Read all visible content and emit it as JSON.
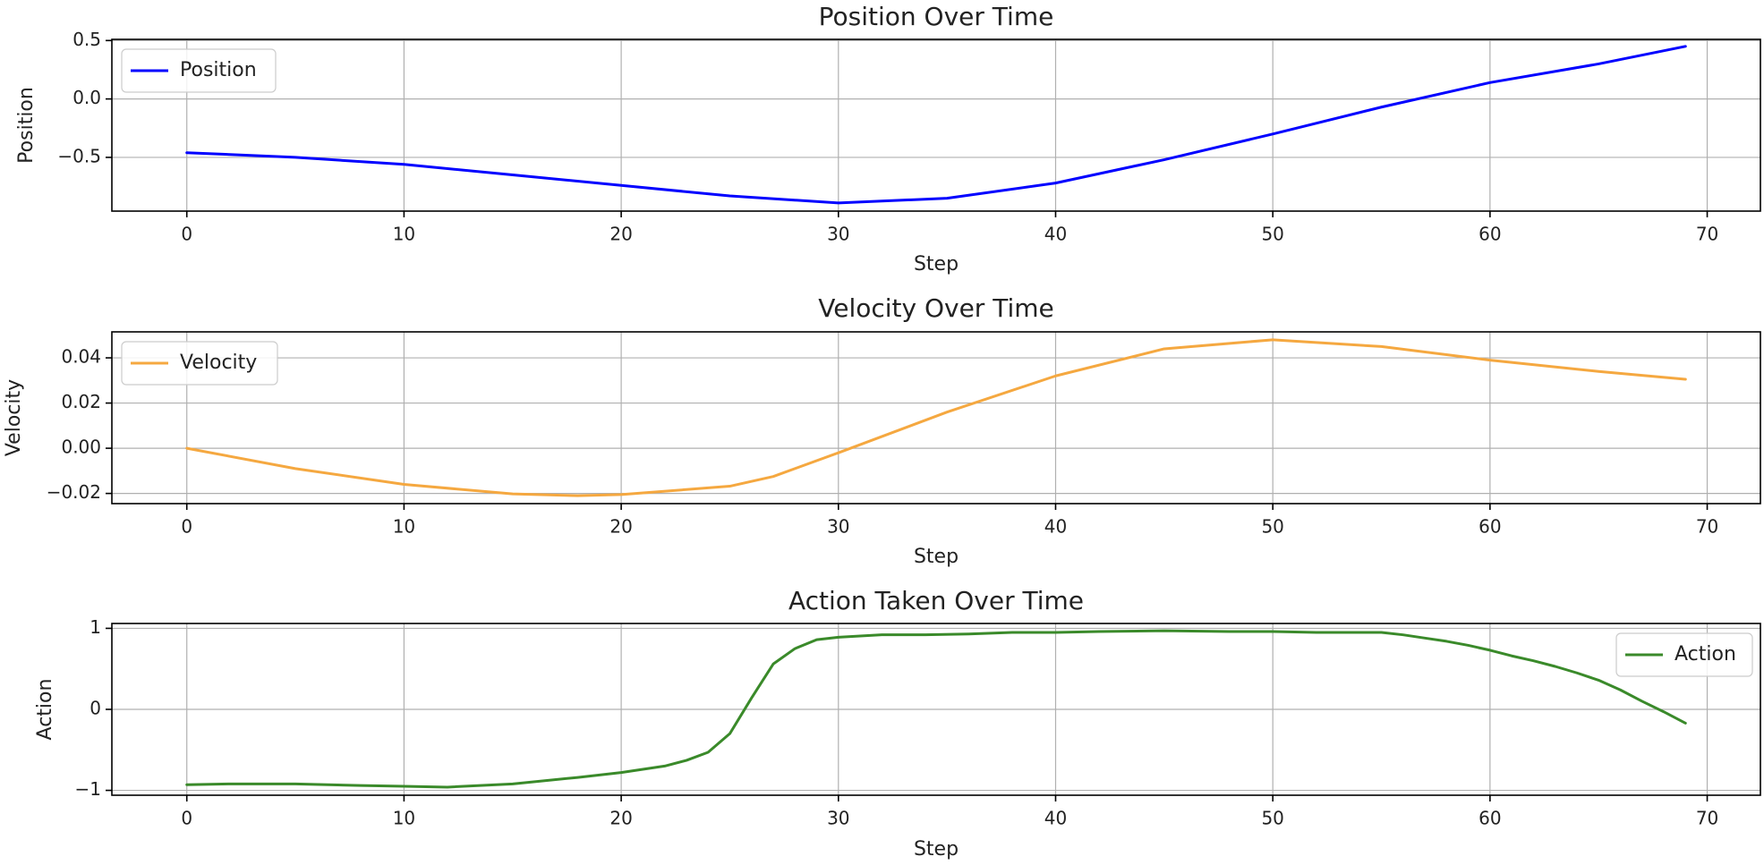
{
  "chart_data": [
    {
      "type": "line",
      "title": "Position Over Time",
      "xlabel": "Step",
      "ylabel": "Position",
      "xlim": [
        -3.45,
        72.45
      ],
      "ylim": [
        -0.96,
        0.51
      ],
      "xticks": [
        0,
        10,
        20,
        30,
        40,
        50,
        60,
        70
      ],
      "yticks": [
        0.5,
        0.0,
        -0.5
      ],
      "ytick_labels": [
        "0.5",
        "0.0",
        "−0.5"
      ],
      "grid": true,
      "legend_position": "upper-left",
      "series": [
        {
          "name": "Position",
          "color": "#0000ff",
          "x": [
            0,
            5,
            10,
            15,
            20,
            25,
            30,
            35,
            40,
            45,
            50,
            55,
            60,
            65,
            69
          ],
          "y": [
            -0.46,
            -0.5,
            -0.56,
            -0.65,
            -0.74,
            -0.83,
            -0.89,
            -0.85,
            -0.72,
            -0.52,
            -0.3,
            -0.07,
            0.14,
            0.3,
            0.45
          ]
        }
      ]
    },
    {
      "type": "line",
      "title": "Velocity Over Time",
      "xlabel": "Step",
      "ylabel": "Velocity",
      "xlim": [
        -3.45,
        72.45
      ],
      "ylim": [
        -0.0245,
        0.0515
      ],
      "xticks": [
        0,
        10,
        20,
        30,
        40,
        50,
        60,
        70
      ],
      "yticks": [
        0.04,
        0.02,
        0.0,
        -0.02
      ],
      "ytick_labels": [
        "0.04",
        "0.02",
        "0.00",
        "−0.02"
      ],
      "grid": true,
      "legend_position": "upper-left",
      "series": [
        {
          "name": "Velocity",
          "color": "#f5a840",
          "x": [
            0,
            5,
            10,
            15,
            18,
            20,
            25,
            27,
            30,
            35,
            40,
            45,
            50,
            55,
            60,
            65,
            69
          ],
          "y": [
            0.0,
            -0.009,
            -0.016,
            -0.0202,
            -0.021,
            -0.0205,
            -0.0168,
            -0.0125,
            -0.002,
            0.016,
            0.032,
            0.044,
            0.048,
            0.045,
            0.039,
            0.034,
            0.0305
          ]
        }
      ]
    },
    {
      "type": "line",
      "title": "Action Taken Over Time",
      "xlabel": "Step",
      "ylabel": "Action",
      "xlim": [
        -3.45,
        72.45
      ],
      "ylim": [
        -1.06,
        1.06
      ],
      "xticks": [
        0,
        10,
        20,
        30,
        40,
        50,
        60,
        70
      ],
      "yticks": [
        1,
        0,
        -1
      ],
      "ytick_labels": [
        "1",
        "0",
        "−1"
      ],
      "grid": true,
      "legend_position": "upper-right",
      "series": [
        {
          "name": "Action",
          "color": "#3a8a2a",
          "x": [
            0,
            2,
            5,
            8,
            10,
            12,
            15,
            18,
            20,
            22,
            23,
            24,
            25,
            26,
            27,
            28,
            29,
            30,
            32,
            34,
            36,
            38,
            40,
            42,
            45,
            48,
            50,
            52,
            55,
            56,
            57,
            58,
            59,
            60,
            61,
            62,
            63,
            64,
            65,
            66,
            67,
            68,
            69
          ],
          "y": [
            -0.93,
            -0.92,
            -0.92,
            -0.94,
            -0.95,
            -0.96,
            -0.92,
            -0.84,
            -0.78,
            -0.7,
            -0.63,
            -0.53,
            -0.3,
            0.14,
            0.56,
            0.75,
            0.86,
            0.89,
            0.92,
            0.92,
            0.93,
            0.95,
            0.95,
            0.96,
            0.97,
            0.96,
            0.96,
            0.95,
            0.95,
            0.92,
            0.88,
            0.84,
            0.79,
            0.73,
            0.66,
            0.6,
            0.53,
            0.45,
            0.36,
            0.24,
            0.1,
            -0.03,
            -0.17
          ]
        }
      ]
    }
  ]
}
